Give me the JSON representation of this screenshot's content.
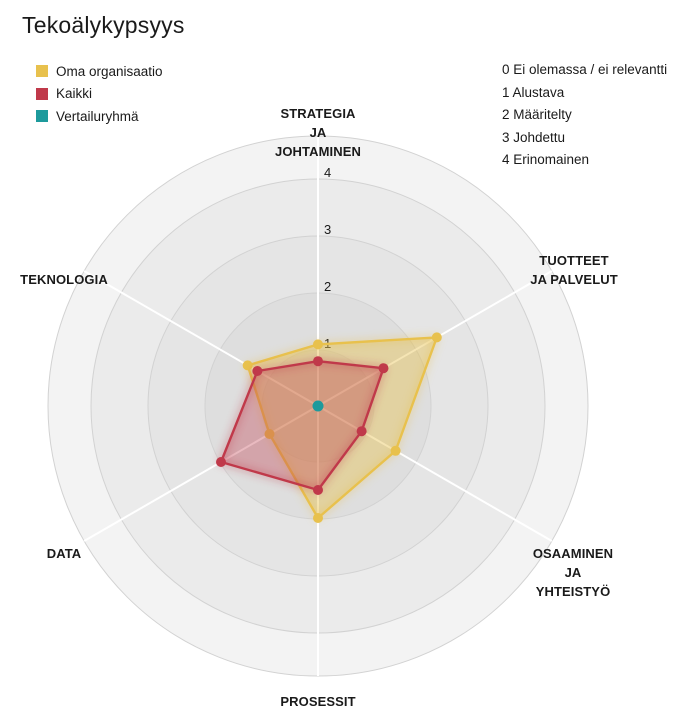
{
  "title": "Tekoälykypsyys",
  "legend": [
    {
      "label": "Oma organisaatio",
      "color": "#e8c14d"
    },
    {
      "label": "Kaikki",
      "color": "#c0394a"
    },
    {
      "label": "Vertailuryhmä",
      "color": "#1d9a9c"
    }
  ],
  "scale_legend": [
    "0 Ei olemassa / ei relevantti",
    "1 Alustava",
    "2 Määritelty",
    "3 Johdettu",
    "4 Erinomainen"
  ],
  "chart_data": {
    "type": "radar",
    "title": "Tekoälykypsyys",
    "axes": [
      [
        "STRATEGIA",
        "JA",
        "JOHTAMINEN"
      ],
      [
        "TUOTTEET",
        "JA PALVELUT"
      ],
      [
        "OSAAMINEN",
        "JA",
        "YHTEISTYÖ"
      ],
      [
        "PROSESSIT"
      ],
      [
        "DATA"
      ],
      [
        "TEKNOLOGIA"
      ]
    ],
    "ticks": [
      "1",
      "2",
      "3",
      "4"
    ],
    "range": [
      0,
      4
    ],
    "series": [
      {
        "name": "Oma organisaatio",
        "color": "#e8c14d",
        "values": [
          1.1,
          2.45,
          1.6,
          2.0,
          1.0,
          1.45
        ]
      },
      {
        "name": "Kaikki",
        "color": "#c0394a",
        "values": [
          0.8,
          1.35,
          0.9,
          1.5,
          2.0,
          1.25
        ]
      },
      {
        "name": "Vertailuryhmä",
        "color": "#1d9a9c",
        "values": [
          0,
          0,
          0,
          0,
          0,
          0
        ]
      }
    ]
  }
}
